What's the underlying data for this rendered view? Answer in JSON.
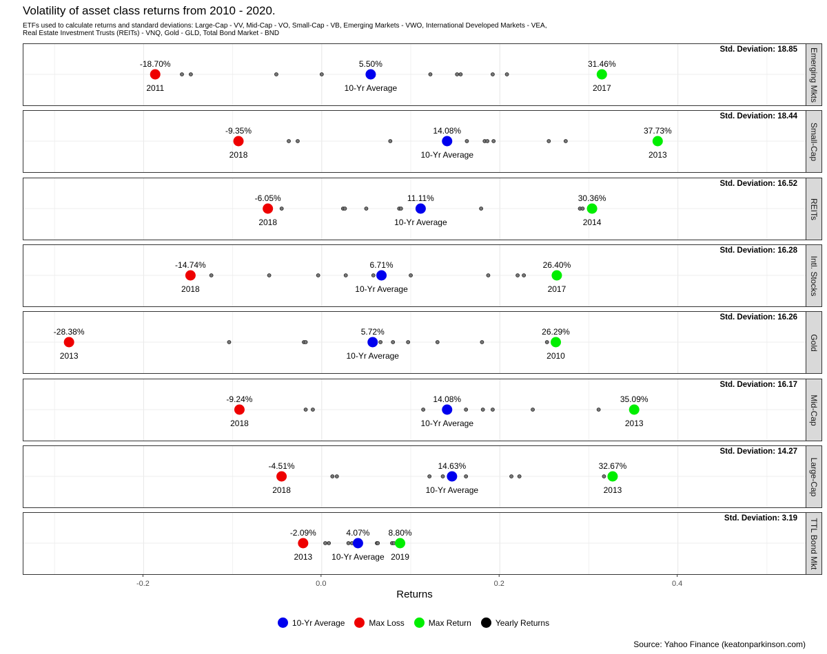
{
  "title": "Volatility of asset class returns from 2010 - 2020.",
  "subtitle_line1": "ETFs used to calculate returns and standard deviations: Large-Cap - VV, Mid-Cap - VO, Small-Cap - VB, Emerging Markets - VWO, International Developed Markets - VEA,",
  "subtitle_line2": "Real Estate Investment Trusts (REITs) - VNQ, Gold - GLD, Total Bond Market - BND",
  "caption": "Source: Yahoo Finance (keatonparkinson.com)",
  "colors": {
    "average": "#0000ee",
    "loss": "#ee0000",
    "max": "#00ee00",
    "yearly": "#000000"
  },
  "chart_data": {
    "type": "scatter",
    "xlabel": "Returns",
    "xlim": [
      -0.335,
      0.545
    ],
    "xticks": [
      -0.2,
      0.0,
      0.2,
      0.4
    ],
    "xtick_labels": [
      "-0.2",
      "0.0",
      "0.2",
      "0.4"
    ],
    "grid": true,
    "legend_position": "bottom",
    "legend": [
      "10-Yr Average",
      "Max Loss",
      "Max Return",
      "Yearly Returns"
    ],
    "std_label": "Std. Deviation:",
    "avg_label": "10-Yr Average",
    "panels": [
      {
        "name": "Emerging Mkts",
        "std": "18.85",
        "avg": 0.055,
        "avg_label_value": "5.50%",
        "min": -0.187,
        "min_label_value": "-18.70%",
        "min_year": "2011",
        "max": 0.3146,
        "max_label_value": "31.46%",
        "max_year": "2017",
        "yearly": [
          -0.157,
          -0.147,
          -0.051,
          0.0,
          0.122,
          0.152,
          0.156,
          0.192,
          0.208
        ]
      },
      {
        "name": "Small-Cap",
        "std": "18.44",
        "avg": 0.1408,
        "avg_label_value": "14.08%",
        "min": -0.0935,
        "min_label_value": "-9.35%",
        "min_year": "2018",
        "max": 0.3773,
        "max_label_value": "37.73%",
        "max_year": "2013",
        "yearly": [
          -0.037,
          -0.027,
          0.077,
          0.163,
          0.183,
          0.186,
          0.193,
          0.255,
          0.274
        ]
      },
      {
        "name": "REITs",
        "std": "16.52",
        "avg": 0.1111,
        "avg_label_value": "11.11%",
        "min": -0.0605,
        "min_label_value": "-6.05%",
        "min_year": "2018",
        "max": 0.3036,
        "max_label_value": "30.36%",
        "max_year": "2014",
        "yearly": [
          -0.045,
          0.024,
          0.026,
          0.05,
          0.087,
          0.089,
          0.179,
          0.29,
          0.293
        ]
      },
      {
        "name": "Intl. Stocks",
        "std": "16.28",
        "avg": 0.0671,
        "avg_label_value": "6.71%",
        "min": -0.1474,
        "min_label_value": "-14.74%",
        "min_year": "2018",
        "max": 0.264,
        "max_label_value": "26.40%",
        "max_year": "2017",
        "yearly": [
          -0.124,
          -0.059,
          -0.004,
          0.027,
          0.058,
          0.1,
          0.187,
          0.22,
          0.227
        ]
      },
      {
        "name": "Gold",
        "std": "16.26",
        "avg": 0.0572,
        "avg_label_value": "5.72%",
        "min": -0.2838,
        "min_label_value": "-28.38%",
        "min_year": "2013",
        "max": 0.2629,
        "max_label_value": "26.29%",
        "max_year": "2010",
        "yearly": [
          -0.104,
          -0.02,
          -0.018,
          0.066,
          0.08,
          0.097,
          0.13,
          0.18,
          0.253
        ]
      },
      {
        "name": "Mid-Cap",
        "std": "16.17",
        "avg": 0.1408,
        "avg_label_value": "14.08%",
        "min": -0.0924,
        "min_label_value": "-9.24%",
        "min_year": "2018",
        "max": 0.3509,
        "max_label_value": "35.09%",
        "max_year": "2013",
        "yearly": [
          -0.018,
          -0.01,
          0.114,
          0.162,
          0.181,
          0.192,
          0.237,
          0.311
        ]
      },
      {
        "name": "Large-Cap",
        "std": "14.27",
        "avg": 0.1463,
        "avg_label_value": "14.63%",
        "min": -0.0451,
        "min_label_value": "-4.51%",
        "min_year": "2018",
        "max": 0.3267,
        "max_label_value": "32.67%",
        "max_year": "2013",
        "yearly": [
          0.012,
          0.017,
          0.121,
          0.136,
          0.162,
          0.213,
          0.222,
          0.317
        ]
      },
      {
        "name": "TTL Bond Mkt",
        "std": "3.19",
        "avg": 0.0407,
        "avg_label_value": "4.07%",
        "min": -0.0209,
        "min_label_value": "-2.09%",
        "min_year": "2013",
        "max": 0.088,
        "max_label_value": "8.80%",
        "max_year": "2019",
        "yearly": [
          0.004,
          0.008,
          0.03,
          0.034,
          0.062,
          0.063,
          0.079,
          0.081
        ]
      }
    ]
  }
}
